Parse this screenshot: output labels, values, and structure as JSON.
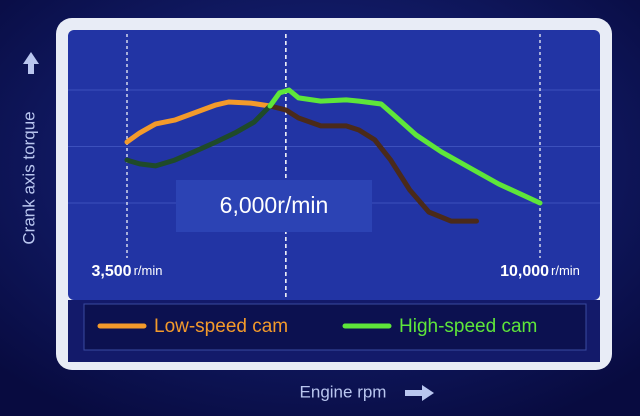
{
  "chart_data": {
    "type": "line",
    "x_label": "Engine rpm",
    "y_label": "Crank axis torque",
    "xlim": [
      3500,
      10000
    ],
    "ylim": [
      0,
      100
    ],
    "xticks": [
      {
        "value": 3500,
        "label": "3,500"
      },
      {
        "value": 10000,
        "label": "10,000"
      }
    ],
    "xtick_unit": "r/min",
    "yticks": [
      25,
      50,
      75
    ],
    "annotation": {
      "x": 6000,
      "text": "6,000r/min"
    },
    "series": [
      {
        "name": "Low-speed cam",
        "color": "#f39a2b",
        "x": [
          3500,
          3700,
          3950,
          4250,
          4550,
          4900,
          5100,
          5450,
          5750
        ],
        "values": [
          52,
          56,
          60,
          61.7,
          64.8,
          68.4,
          69.7,
          69.2,
          67.9
        ]
      },
      {
        "color": "#4a2a1a",
        "x": [
          5750,
          6000,
          6200,
          6550,
          6950,
          7150,
          7400,
          7650,
          7950,
          8250,
          8600,
          9000
        ],
        "values": [
          67.9,
          66.2,
          62.6,
          59.1,
          59.1,
          57.3,
          52.9,
          44,
          30.8,
          21,
          17,
          17
        ]
      },
      {
        "color": "#1f4a2a",
        "x": [
          3500,
          3700,
          3950,
          4250,
          4550,
          4900,
          5200,
          5500,
          5750
        ],
        "values": [
          44,
          42.3,
          41.4,
          44,
          47.6,
          52,
          56,
          60.8,
          67.9
        ]
      },
      {
        "name": "High-speed cam",
        "color": "#5ee63a",
        "x": [
          5750,
          5900,
          6050,
          6200,
          6550,
          6950,
          7150,
          7500,
          7700,
          8050,
          8450,
          8900,
          9350,
          10000
        ],
        "values": [
          67.9,
          73.7,
          75,
          71.5,
          70.1,
          70.6,
          70.1,
          68.8,
          63.9,
          55.1,
          47.6,
          40.5,
          33.4,
          25
        ]
      }
    ]
  }
}
